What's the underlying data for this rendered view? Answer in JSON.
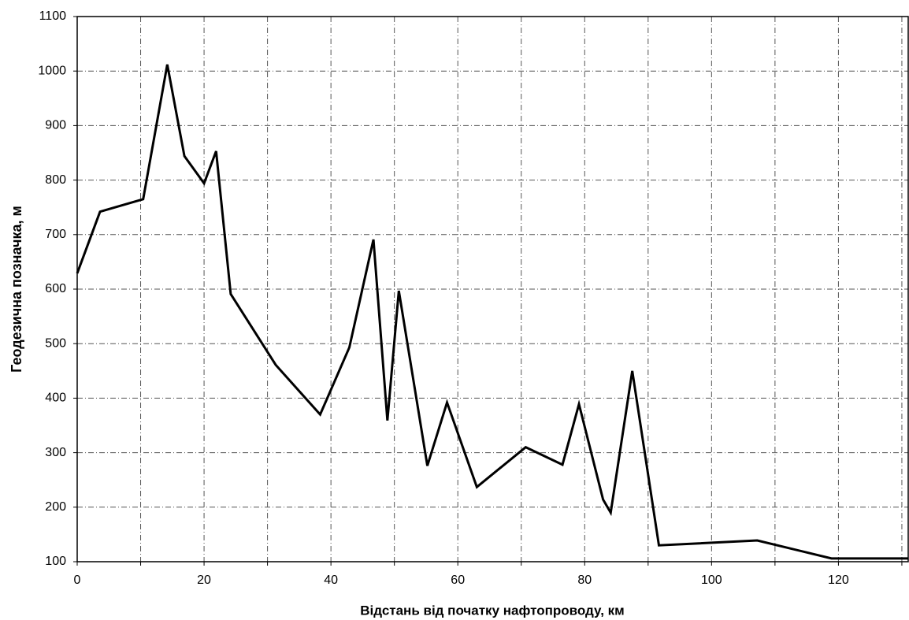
{
  "chart_data": {
    "type": "line",
    "x_label": "Відстань від початку нафтопроводу,  км",
    "y_label": "Геодезична  позначка,  м",
    "x": [
      0,
      3.6,
      10.4,
      14.2,
      16.9,
      20,
      21.9,
      24.2,
      31.3,
      38.3,
      42.9,
      46.7,
      48.9,
      50.7,
      55.2,
      58.3,
      63,
      70.7,
      76.5,
      79.1,
      82.9,
      84.1,
      87.5,
      91.7,
      107.2,
      118.9,
      131
    ],
    "series": [
      {
        "name": "Геодезична позначка",
        "color": "#000000",
        "values": [
          629,
          742,
          765,
          1012,
          844,
          794,
          853,
          591,
          461,
          370,
          493,
          691,
          359,
          597,
          276,
          392,
          237,
          310,
          278,
          389,
          214,
          190,
          450,
          130,
          139,
          106,
          106
        ]
      }
    ],
    "xlim": [
      0,
      131
    ],
    "ylim": [
      100,
      1100
    ],
    "xticks": [
      0,
      20,
      40,
      60,
      80,
      100,
      120
    ],
    "xgrid_minor": [
      10,
      30,
      50,
      70,
      90,
      110,
      130
    ],
    "yticks": [
      100,
      200,
      300,
      400,
      500,
      600,
      700,
      800,
      900,
      1000,
      1100
    ],
    "grid": true
  }
}
